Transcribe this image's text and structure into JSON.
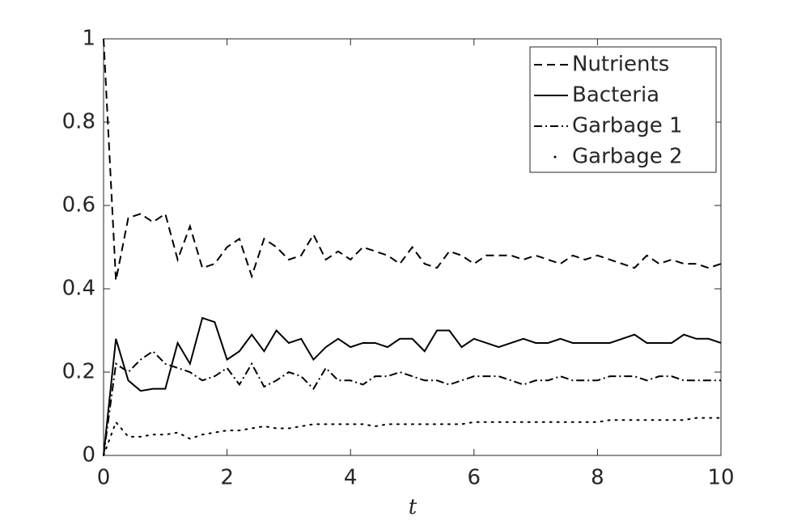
{
  "chart_data": {
    "type": "line",
    "xlabel": "t",
    "x": [
      0,
      0.2,
      0.4,
      0.6,
      0.8,
      1,
      1.2,
      1.4,
      1.6,
      1.8,
      2,
      2.2,
      2.4,
      2.6,
      2.8,
      3,
      3.2,
      3.4,
      3.6,
      3.8,
      4,
      4.2,
      4.4,
      4.6,
      4.8,
      5,
      5.2,
      5.4,
      5.6,
      5.8,
      6,
      6.2,
      6.4,
      6.6,
      6.8,
      7,
      7.2,
      7.4,
      7.6,
      7.8,
      8,
      8.2,
      8.4,
      8.6,
      8.8,
      9,
      9.2,
      9.4,
      9.6,
      9.8,
      10
    ],
    "series": [
      {
        "name": "Nutrients",
        "color": "#000000",
        "linestyle": "--",
        "values": [
          1.0,
          0.42,
          0.57,
          0.58,
          0.56,
          0.58,
          0.47,
          0.55,
          0.45,
          0.46,
          0.5,
          0.52,
          0.43,
          0.52,
          0.5,
          0.47,
          0.48,
          0.53,
          0.47,
          0.49,
          0.47,
          0.5,
          0.49,
          0.48,
          0.46,
          0.5,
          0.46,
          0.45,
          0.49,
          0.48,
          0.46,
          0.48,
          0.48,
          0.48,
          0.47,
          0.48,
          0.47,
          0.46,
          0.48,
          0.47,
          0.48,
          0.47,
          0.46,
          0.45,
          0.48,
          0.46,
          0.47,
          0.46,
          0.46,
          0.45,
          0.46
        ]
      },
      {
        "name": "Bacteria",
        "color": "#000000",
        "linestyle": "-",
        "values": [
          0,
          0.28,
          0.18,
          0.155,
          0.16,
          0.16,
          0.27,
          0.22,
          0.33,
          0.32,
          0.23,
          0.25,
          0.29,
          0.25,
          0.3,
          0.27,
          0.28,
          0.23,
          0.26,
          0.28,
          0.26,
          0.27,
          0.27,
          0.26,
          0.28,
          0.28,
          0.25,
          0.3,
          0.3,
          0.26,
          0.28,
          0.27,
          0.26,
          0.27,
          0.28,
          0.27,
          0.27,
          0.28,
          0.27,
          0.27,
          0.27,
          0.27,
          0.28,
          0.29,
          0.27,
          0.27,
          0.27,
          0.29,
          0.28,
          0.28,
          0.27
        ]
      },
      {
        "name": "Garbage 1",
        "color": "#000000",
        "linestyle": "-.",
        "values": [
          0,
          0.22,
          0.2,
          0.23,
          0.25,
          0.22,
          0.21,
          0.2,
          0.18,
          0.19,
          0.21,
          0.17,
          0.22,
          0.165,
          0.18,
          0.2,
          0.19,
          0.16,
          0.21,
          0.18,
          0.18,
          0.17,
          0.19,
          0.19,
          0.2,
          0.19,
          0.18,
          0.18,
          0.17,
          0.18,
          0.19,
          0.19,
          0.19,
          0.18,
          0.17,
          0.18,
          0.18,
          0.19,
          0.18,
          0.18,
          0.18,
          0.19,
          0.19,
          0.19,
          0.18,
          0.19,
          0.19,
          0.18,
          0.18,
          0.18,
          0.18
        ]
      },
      {
        "name": "Garbage 2",
        "color": "#000000",
        "linestyle": ":",
        "values": [
          0,
          0.08,
          0.045,
          0.045,
          0.05,
          0.05,
          0.055,
          0.04,
          0.05,
          0.055,
          0.06,
          0.06,
          0.065,
          0.07,
          0.065,
          0.065,
          0.07,
          0.075,
          0.075,
          0.075,
          0.075,
          0.075,
          0.07,
          0.075,
          0.075,
          0.075,
          0.075,
          0.075,
          0.075,
          0.075,
          0.08,
          0.08,
          0.08,
          0.08,
          0.08,
          0.08,
          0.08,
          0.08,
          0.08,
          0.08,
          0.08,
          0.085,
          0.085,
          0.085,
          0.085,
          0.085,
          0.085,
          0.085,
          0.09,
          0.09,
          0.09
        ]
      }
    ],
    "xlim": [
      0,
      10
    ],
    "xticks": [
      0,
      2,
      4,
      6,
      8,
      10
    ],
    "ylim": [
      0,
      1
    ],
    "yticks": [
      0,
      0.2,
      0.4,
      0.6,
      0.8,
      1
    ],
    "grid": false,
    "legend": "upper right"
  }
}
